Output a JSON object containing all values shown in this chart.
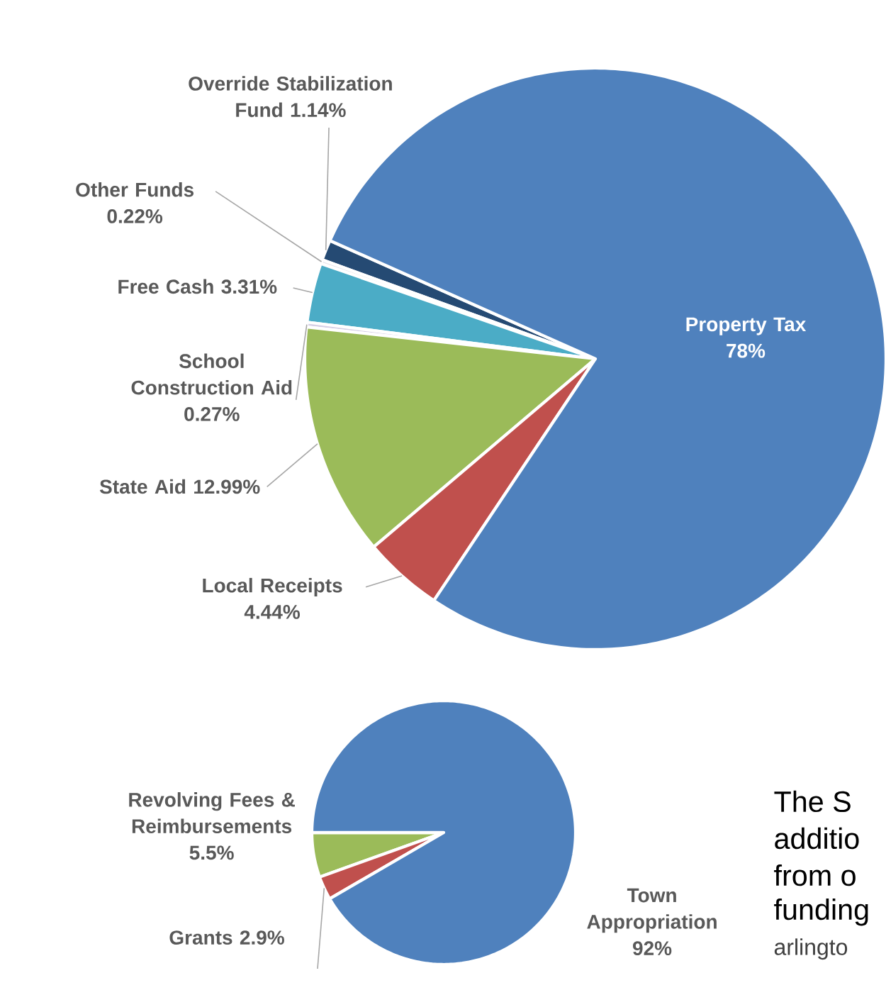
{
  "chart_data": [
    {
      "type": "pie",
      "categories": [
        "Override Stabilization Fund",
        "Other Funds",
        "Free Cash",
        "School Construction Aid",
        "State Aid",
        "Local Receipts",
        "Property Tax"
      ],
      "values": [
        1.14,
        0.22,
        3.31,
        0.27,
        12.99,
        4.44,
        78
      ],
      "value_labels": [
        "1.14%",
        "0.22%",
        "3.31%",
        "0.27%",
        "12.99%",
        "4.44%",
        "78%"
      ],
      "colors": [
        "#254a73",
        "#e8e8ee",
        "#4bacc6",
        "#d6d0e6",
        "#9bbb59",
        "#c0504d",
        "#4f81bd"
      ]
    },
    {
      "type": "pie",
      "categories": [
        "Revolving Fees & Reimbursements",
        "Grants",
        "Town Appropriation"
      ],
      "values": [
        5.5,
        2.9,
        92
      ],
      "value_labels": [
        "5.5%",
        "2.9%",
        "92%"
      ],
      "colors": [
        "#9bbb59",
        "#c0504d",
        "#4f81bd"
      ],
      "annotations": [
        "The S",
        "additio",
        "from o",
        "funding",
        "arlingto"
      ]
    }
  ]
}
